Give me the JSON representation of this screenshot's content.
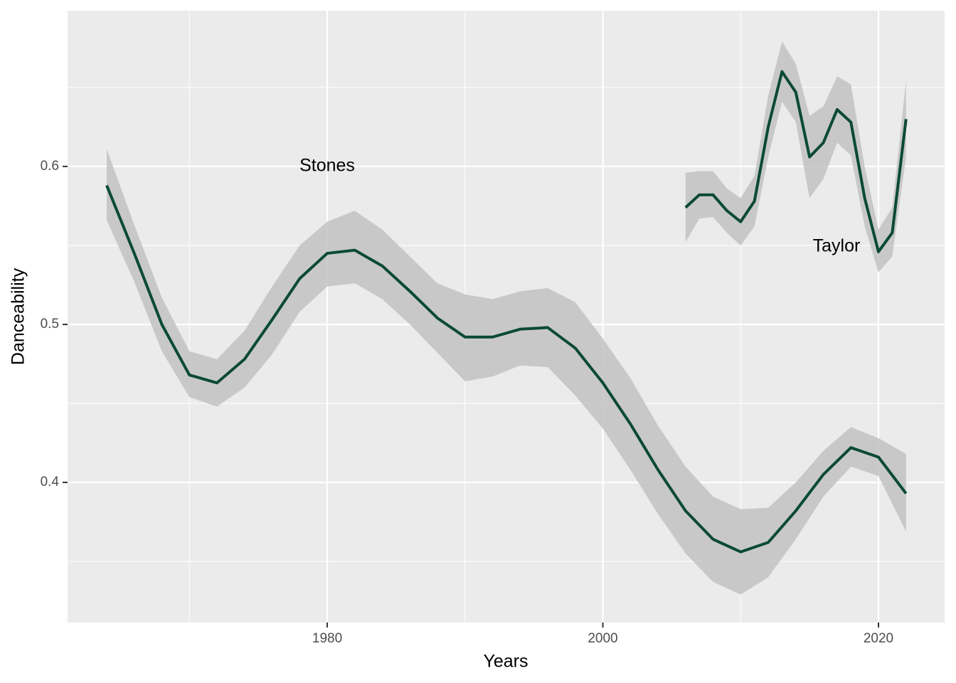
{
  "chart_data": {
    "type": "smooth",
    "x_label": "Years",
    "y_label": "Danceability",
    "xlim": [
      1961.16,
      2024.8
    ],
    "ylim": [
      0.3113,
      0.6986
    ],
    "xticks": [
      1980,
      2000,
      2020
    ],
    "yticks": [
      0.4,
      0.5,
      0.6
    ],
    "xminor": [
      1970,
      1990,
      2010
    ],
    "yminor": [
      0.35,
      0.45,
      0.55,
      0.65
    ],
    "grid": true,
    "panel_color": "#ebebeb",
    "band_color": "#c2c2c2",
    "series": [
      {
        "name": "Stones",
        "color": "#0b4a33",
        "x": [
          1964,
          1966,
          1968,
          1970,
          1972,
          1974,
          1976,
          1978,
          1980,
          1982,
          1984,
          1986,
          1988,
          1990,
          1992,
          1994,
          1996,
          1998,
          2000,
          2002,
          2004,
          2006,
          2008,
          2010,
          2012,
          2014,
          2016,
          2018,
          2020,
          2022
        ],
        "values": [
          0.588,
          0.545,
          0.5,
          0.468,
          0.463,
          0.478,
          0.503,
          0.529,
          0.545,
          0.547,
          0.537,
          0.521,
          0.504,
          0.492,
          0.492,
          0.497,
          0.498,
          0.485,
          0.463,
          0.437,
          0.408,
          0.382,
          0.364,
          0.356,
          0.362,
          0.382,
          0.405,
          0.422,
          0.416,
          0.393
        ],
        "lower": [
          0.566,
          0.527,
          0.483,
          0.454,
          0.448,
          0.46,
          0.481,
          0.508,
          0.524,
          0.526,
          0.516,
          0.5,
          0.482,
          0.464,
          0.467,
          0.474,
          0.473,
          0.455,
          0.434,
          0.408,
          0.38,
          0.355,
          0.337,
          0.329,
          0.34,
          0.364,
          0.391,
          0.41,
          0.404,
          0.369
        ],
        "upper": [
          0.611,
          0.563,
          0.517,
          0.483,
          0.478,
          0.496,
          0.524,
          0.55,
          0.565,
          0.572,
          0.56,
          0.543,
          0.526,
          0.519,
          0.516,
          0.521,
          0.523,
          0.514,
          0.491,
          0.466,
          0.436,
          0.41,
          0.391,
          0.383,
          0.384,
          0.4,
          0.42,
          0.435,
          0.428,
          0.418
        ]
      },
      {
        "name": "Taylor",
        "color": "#0b4a33",
        "x": [
          2006,
          2007,
          2008,
          2009,
          2010,
          2011,
          2012,
          2013,
          2014,
          2015,
          2016,
          2017,
          2018,
          2019,
          2020,
          2021,
          2022
        ],
        "values": [
          0.574,
          0.582,
          0.582,
          0.572,
          0.565,
          0.578,
          0.625,
          0.66,
          0.647,
          0.606,
          0.615,
          0.636,
          0.628,
          0.58,
          0.546,
          0.558,
          0.63
        ],
        "lower": [
          0.552,
          0.567,
          0.568,
          0.558,
          0.55,
          0.562,
          0.606,
          0.641,
          0.628,
          0.58,
          0.592,
          0.615,
          0.607,
          0.562,
          0.533,
          0.543,
          0.606
        ],
        "upper": [
          0.596,
          0.597,
          0.597,
          0.586,
          0.58,
          0.594,
          0.645,
          0.679,
          0.665,
          0.632,
          0.638,
          0.657,
          0.652,
          0.6,
          0.56,
          0.574,
          0.654
        ]
      }
    ]
  }
}
